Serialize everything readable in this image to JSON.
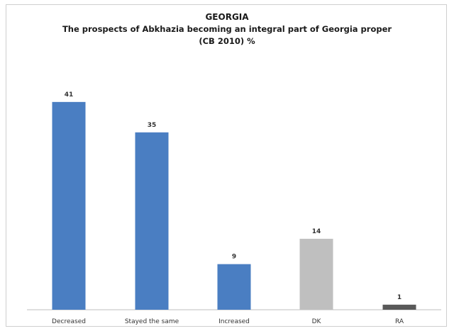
{
  "chart_data": {
    "type": "bar",
    "title": "GEORGIA",
    "subtitle_lines": [
      "The prospects of Abkhazia becoming an integral part of Georgia proper",
      "(CB 2010) %"
    ],
    "categories": [
      "Decreased",
      "Stayed the same",
      "Increased",
      "DK",
      "RA"
    ],
    "values": [
      41,
      35,
      9,
      14,
      1
    ],
    "bar_colors": [
      "#4a7ec2",
      "#4a7ec2",
      "#4a7ec2",
      "#bfbfbf",
      "#595959"
    ],
    "ylim": [
      0,
      45
    ],
    "grid": false,
    "legend": "none"
  }
}
